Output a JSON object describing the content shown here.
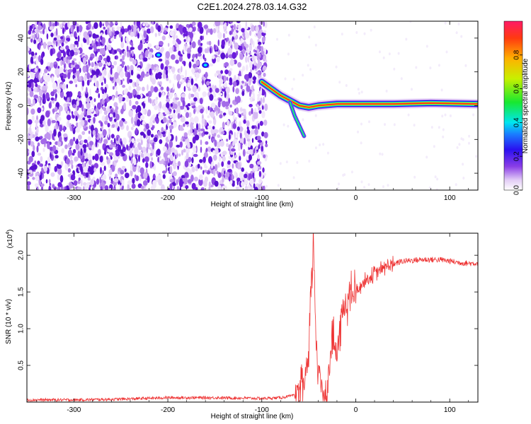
{
  "title": "C2E1.2024.278.03.14.G32",
  "colors": {
    "snr_line": "#ee3333",
    "noise_purple": "#6a1bdc",
    "signal_core": "#ff2020"
  },
  "chart_data": [
    {
      "type": "heatmap",
      "title": "C2E1.2024.278.03.14.G32",
      "xlabel": "Height of straight line (km)",
      "ylabel": "Frequency (Hz)",
      "xlim": [
        -350,
        130
      ],
      "ylim": [
        -50,
        50
      ],
      "x_ticks": [
        "-300",
        "-200",
        "-100",
        "0",
        "100"
      ],
      "y_ticks": [
        "-40",
        "-20",
        "0",
        "20",
        "40"
      ],
      "colorbar": {
        "label": "Normalized spectral amplitude",
        "range": [
          0,
          1
        ],
        "ticks": [
          "0.0",
          "0.2",
          "0.4",
          "0.6",
          "0.8"
        ],
        "colormap": "rainbow (white-purple-blue-cyan-green-yellow-red)"
      },
      "signal_ridge": [
        {
          "x": -100,
          "y": 14
        },
        {
          "x": -90,
          "y": 10
        },
        {
          "x": -80,
          "y": 6
        },
        {
          "x": -70,
          "y": 3
        },
        {
          "x": -60,
          "y": 0
        },
        {
          "x": -50,
          "y": -1
        },
        {
          "x": -40,
          "y": 0
        },
        {
          "x": -20,
          "y": 1
        },
        {
          "x": 0,
          "y": 1
        },
        {
          "x": 40,
          "y": 1
        },
        {
          "x": 80,
          "y": 1.5
        },
        {
          "x": 130,
          "y": 1
        }
      ]
    },
    {
      "type": "line",
      "xlabel": "Height of straight line (km)",
      "ylabel": "SNR (10 * v/v)",
      "y_multiplier": "(x10",
      "y_multiplier_exp": "4",
      "xlim": [
        -350,
        130
      ],
      "ylim": [
        0,
        2.3
      ],
      "x_ticks": [
        "-300",
        "-200",
        "-100",
        "0",
        "100"
      ],
      "y_ticks": [
        "0.5",
        "1.0",
        "1.5",
        "2.0"
      ],
      "series": [
        {
          "x": [
            -350,
            -300,
            -250,
            -200,
            -150,
            -100,
            -80,
            -60,
            -55,
            -50,
            -48,
            -45,
            -43,
            -40,
            -35,
            -30,
            -25,
            -20,
            -15,
            -10,
            -5,
            0,
            5,
            10,
            20,
            30,
            40,
            50,
            60,
            70,
            80,
            90,
            100,
            110,
            120,
            130
          ],
          "y": [
            0.03,
            0.03,
            0.04,
            0.06,
            0.06,
            0.05,
            0.06,
            0.1,
            0.25,
            0.55,
            1.4,
            2.2,
            1.2,
            0.4,
            0.15,
            0.2,
            0.9,
            0.6,
            1.2,
            1.35,
            1.45,
            1.5,
            1.58,
            1.65,
            1.75,
            1.83,
            1.88,
            1.92,
            1.93,
            1.94,
            1.94,
            1.94,
            1.92,
            1.9,
            1.89,
            1.89
          ]
        }
      ]
    }
  ]
}
